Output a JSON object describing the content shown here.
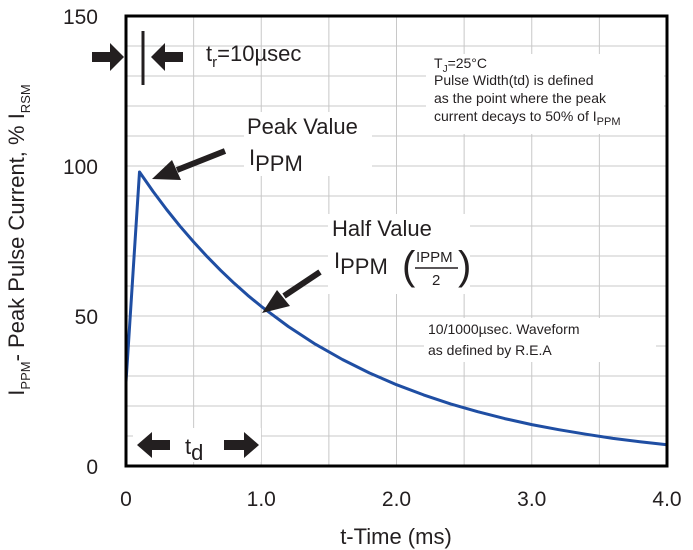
{
  "chart_data": {
    "type": "line",
    "title": "",
    "xlabel": "t-Time (ms)",
    "ylabel_parts": {
      "main": "I",
      "sub1": "PPM",
      "mid": "- Peak Pulse Current, % I",
      "sub2": "RSM"
    },
    "xlim": [
      0,
      4.0
    ],
    "ylim": [
      0,
      150
    ],
    "x_ticks": [
      0,
      1.0,
      2.0,
      3.0,
      4.0
    ],
    "x_tick_labels": [
      "0",
      "1.0",
      "2.0",
      "3.0",
      "4.0"
    ],
    "y_ticks": [
      0,
      50,
      100,
      150
    ],
    "y_tick_labels": [
      "0",
      "50",
      "100",
      "150"
    ],
    "grid": true,
    "series": [
      {
        "name": "10/1000µsec waveform",
        "color": "#1f4ea3",
        "x": [
          0,
          0.1,
          0.2,
          0.3,
          0.4,
          0.5,
          0.6,
          0.7,
          0.8,
          0.9,
          1.0,
          1.2,
          1.4,
          1.6,
          1.8,
          2.0,
          2.2,
          2.4,
          2.6,
          2.8,
          3.0,
          3.2,
          3.4,
          3.6,
          3.8,
          4.0
        ],
        "y": [
          28,
          98,
          91.5,
          85.5,
          79.9,
          74.7,
          69.8,
          65.2,
          60.9,
          56.9,
          53.2,
          46.5,
          40.6,
          35.5,
          31.0,
          27.1,
          23.7,
          20.7,
          18.1,
          15.8,
          13.8,
          12.1,
          10.6,
          9.2,
          8.1,
          7.1
        ]
      }
    ],
    "annotations": {
      "tr": {
        "main": "t",
        "sub": "r",
        "rest": "=10µsec"
      },
      "peak": {
        "line1": "Peak Value",
        "main": "I",
        "sub": "PPM"
      },
      "half": {
        "line1": "Half Value",
        "main": "I",
        "sub": "PPM",
        "frac_num": "IPPM",
        "frac_den": "2"
      },
      "td": {
        "main": "t",
        "sub": "d"
      },
      "note": {
        "tj_main": "T",
        "tj_sub": "J",
        "tj_rest": "=25°C",
        "line2": "Pulse Width(td) is defined",
        "line3": "as the point where the peak",
        "line4": "current decays to 50% of I",
        "line4_sub": "PPM"
      },
      "waveform": {
        "line1": "10/1000µsec. Waveform",
        "line2": "as defined by R.E.A"
      }
    }
  }
}
